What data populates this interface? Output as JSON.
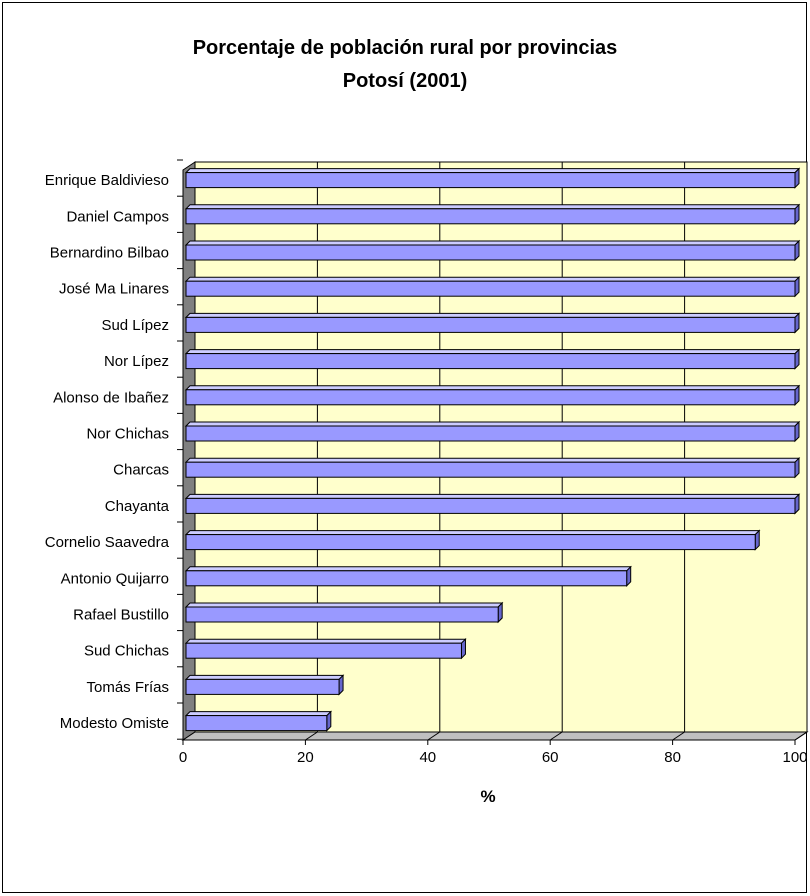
{
  "chart_data": {
    "type": "bar",
    "orientation": "horizontal",
    "title_line1": "Porcentaje de población rural por provincias",
    "title_line2": "Potosí (2001)",
    "xlabel": "%",
    "ylabel": "",
    "xlim": [
      0,
      100
    ],
    "xticks": [
      "0",
      "20",
      "40",
      "60",
      "80",
      "100"
    ],
    "grid": true,
    "legend": "none",
    "categories": [
      "Enrique Baldivieso",
      "Daniel Campos",
      "Bernardino Bilbao",
      "José Ma Linares",
      "Sud Lípez",
      "Nor Lípez",
      "Alonso de Ibañez",
      "Nor Chichas",
      "Charcas",
      "Chayanta",
      "Cornelio Saavedra",
      "Antonio Quijarro",
      "Rafael Bustillo",
      "Sud Chichas",
      "Tomás Frías",
      "Modesto Omiste"
    ],
    "values": [
      100,
      100,
      100,
      100,
      100,
      100,
      100,
      100,
      100,
      100,
      93.5,
      72.5,
      51.5,
      45.5,
      25.5,
      23.5
    ]
  },
  "colors": {
    "plot_background": "#ffffcc",
    "bar_front": "#9999ff",
    "bar_top": "#ccccff",
    "bar_side": "#6666cc",
    "wall_side": "#808080",
    "gridline": "#000000"
  }
}
